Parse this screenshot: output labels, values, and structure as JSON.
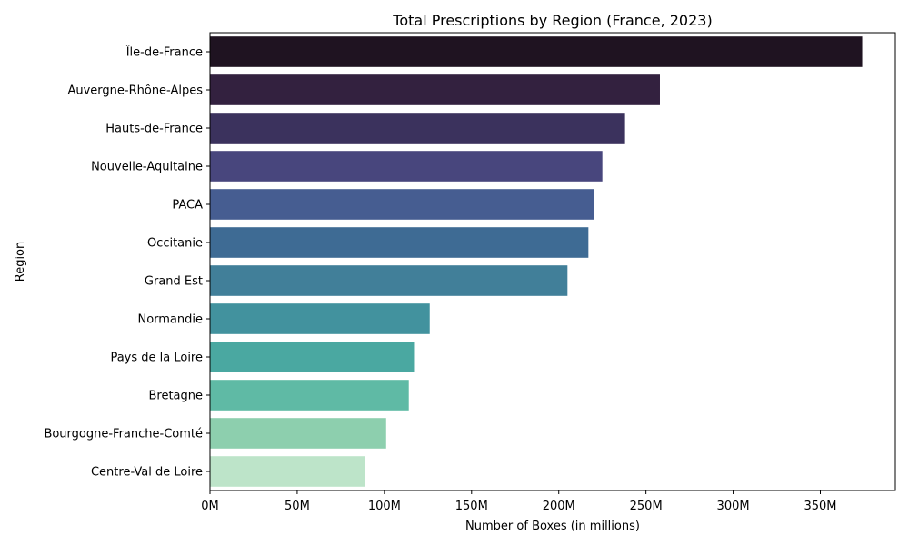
{
  "chart_data": {
    "type": "bar",
    "orientation": "horizontal",
    "title": "Total Prescriptions by Region (France, 2023)",
    "xlabel": "Number of Boxes (in millions)",
    "ylabel": "Region",
    "categories": [
      "Île-de-France",
      "Auvergne-Rhône-Alpes",
      "Hauts-de-France",
      "Nouvelle-Aquitaine",
      "PACA",
      "Occitanie",
      "Grand Est",
      "Normandie",
      "Pays de la Loire",
      "Bretagne",
      "Bourgogne-Franche-Comté",
      "Centre-Val de Loire"
    ],
    "values": [
      374,
      258,
      238,
      225,
      220,
      217,
      205,
      126,
      117,
      114,
      101,
      89
    ],
    "colors": [
      "#1f1321",
      "#33213f",
      "#3b325d",
      "#48467d",
      "#465d91",
      "#3e6b94",
      "#417f99",
      "#42929e",
      "#4aa8a1",
      "#5fbaa5",
      "#8dcfae",
      "#bde4c9"
    ],
    "xlim": [
      0,
      393
    ],
    "xticks": [
      0,
      50,
      100,
      150,
      200,
      250,
      300,
      350
    ],
    "xtick_labels": [
      "0M",
      "50M",
      "100M",
      "150M",
      "200M",
      "250M",
      "300M",
      "350M"
    ],
    "grid": false,
    "legend": "none"
  }
}
